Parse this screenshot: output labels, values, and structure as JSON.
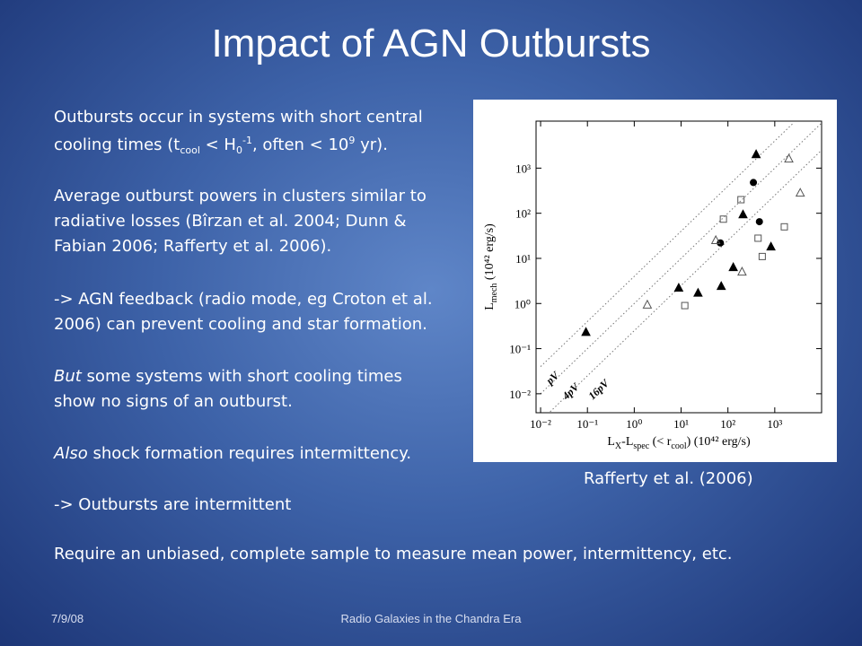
{
  "title": "Impact of AGN Outbursts",
  "body": [
    {
      "runs": [
        {
          "text": "Outbursts occur in systems with short central"
        }
      ]
    },
    {
      "runs": [
        {
          "text": "cooling times (t"
        },
        {
          "text": "cool",
          "style": "sub"
        },
        {
          "text": " < H"
        },
        {
          "text": "0",
          "style": "sub"
        },
        {
          "text": "-1",
          "style": "sup"
        },
        {
          "text": ", often < 10"
        },
        {
          "text": "9",
          "style": "sup"
        },
        {
          "text": " yr)."
        }
      ]
    },
    {
      "runs": [
        {
          "text": "Average outburst powers in clusters similar to"
        }
      ]
    },
    {
      "runs": [
        {
          "text": "radiative losses (Bîrzan et al. 2004; Dunn &"
        }
      ]
    },
    {
      "runs": [
        {
          "text": "Fabian 2006; Rafferty et al. 2006)."
        }
      ]
    },
    {
      "runs": [
        {
          "text": "-> AGN feedback (radio mode, eg Croton et al."
        }
      ]
    },
    {
      "runs": [
        {
          "text": "2006) can prevent cooling and star formation."
        }
      ]
    },
    {
      "runs": [
        {
          "text": "But",
          "style": "italic"
        },
        {
          "text": " some systems with short cooling times"
        }
      ]
    },
    {
      "runs": [
        {
          "text": "show no signs of an outburst."
        }
      ]
    },
    {
      "runs": [
        {
          "text": "Also",
          "style": "italic"
        },
        {
          "text": " shock formation requires intermittency."
        }
      ]
    },
    {
      "runs": [
        {
          "text": "-> Outbursts are intermittent"
        }
      ]
    },
    {
      "runs": [
        {
          "text": "Require an unbiased, complete sample to measure mean power, intermittency, etc."
        }
      ]
    }
  ],
  "caption": "Rafferty et al. (2006)",
  "footer": {
    "date": "7/9/08",
    "center": "Radio Galaxies in the Chandra Era"
  },
  "chart_data": {
    "type": "scatter",
    "xlog": true,
    "ylog": true,
    "xlim": [
      0.008,
      10000
    ],
    "ylim": [
      0.0038,
      11000
    ],
    "xticks": [
      {
        "value": 0.01,
        "label": "10⁻²"
      },
      {
        "value": 0.1,
        "label": "10⁻¹"
      },
      {
        "value": 1,
        "label": "10⁰"
      },
      {
        "value": 10,
        "label": "10¹"
      },
      {
        "value": 100,
        "label": "10²"
      },
      {
        "value": 1000,
        "label": "10³"
      }
    ],
    "yticks": [
      {
        "value": 0.01,
        "label": "10⁻²"
      },
      {
        "value": 0.1,
        "label": "10⁻¹"
      },
      {
        "value": 1,
        "label": "10⁰"
      },
      {
        "value": 10,
        "label": "10¹"
      },
      {
        "value": 100,
        "label": "10²"
      },
      {
        "value": 1000,
        "label": "10³"
      }
    ],
    "xlabel": {
      "a": "L",
      "a_sub": "X",
      "b": "-L",
      "b_sub": "spec",
      "c": " (< r",
      "c_sub": "cool",
      "d": ") (10⁴² erg/s)"
    },
    "ylabel": {
      "a": "L",
      "a_sub": "mech",
      "b": " (10⁴² erg/s)"
    },
    "series": [
      {
        "marker": "triangle",
        "filled": true,
        "color": "#000000",
        "x": [
          0.093,
          8.9,
          23,
          72,
          130,
          210,
          400,
          830
        ],
        "y": [
          0.23,
          2.2,
          1.7,
          2.4,
          6.3,
          93,
          2000,
          18
        ]
      },
      {
        "marker": "circle",
        "filled": true,
        "color": "#000000",
        "x": [
          69,
          350,
          470
        ],
        "y": [
          22,
          480,
          65
        ]
      },
      {
        "marker": "triangle",
        "filled": false,
        "color": "#555555",
        "x": [
          1.9,
          55,
          200,
          2000,
          3500
        ],
        "y": [
          0.93,
          25,
          5,
          1600,
          280
        ]
      },
      {
        "marker": "square",
        "filled": false,
        "color": "#555555",
        "x": [
          12,
          80,
          190,
          440,
          1600,
          540
        ],
        "y": [
          0.9,
          74,
          200,
          28,
          50,
          11
        ]
      }
    ],
    "reference_lines": [
      {
        "label": "pV",
        "x": [
          0.01,
          2500
        ],
        "y": [
          0.04,
          10000
        ]
      },
      {
        "label": "4pV",
        "x": [
          0.01,
          10000
        ],
        "y": [
          0.01,
          10000
        ]
      },
      {
        "label": "16pV",
        "x": [
          0.016,
          10000
        ],
        "y": [
          0.004,
          2500
        ]
      }
    ]
  }
}
